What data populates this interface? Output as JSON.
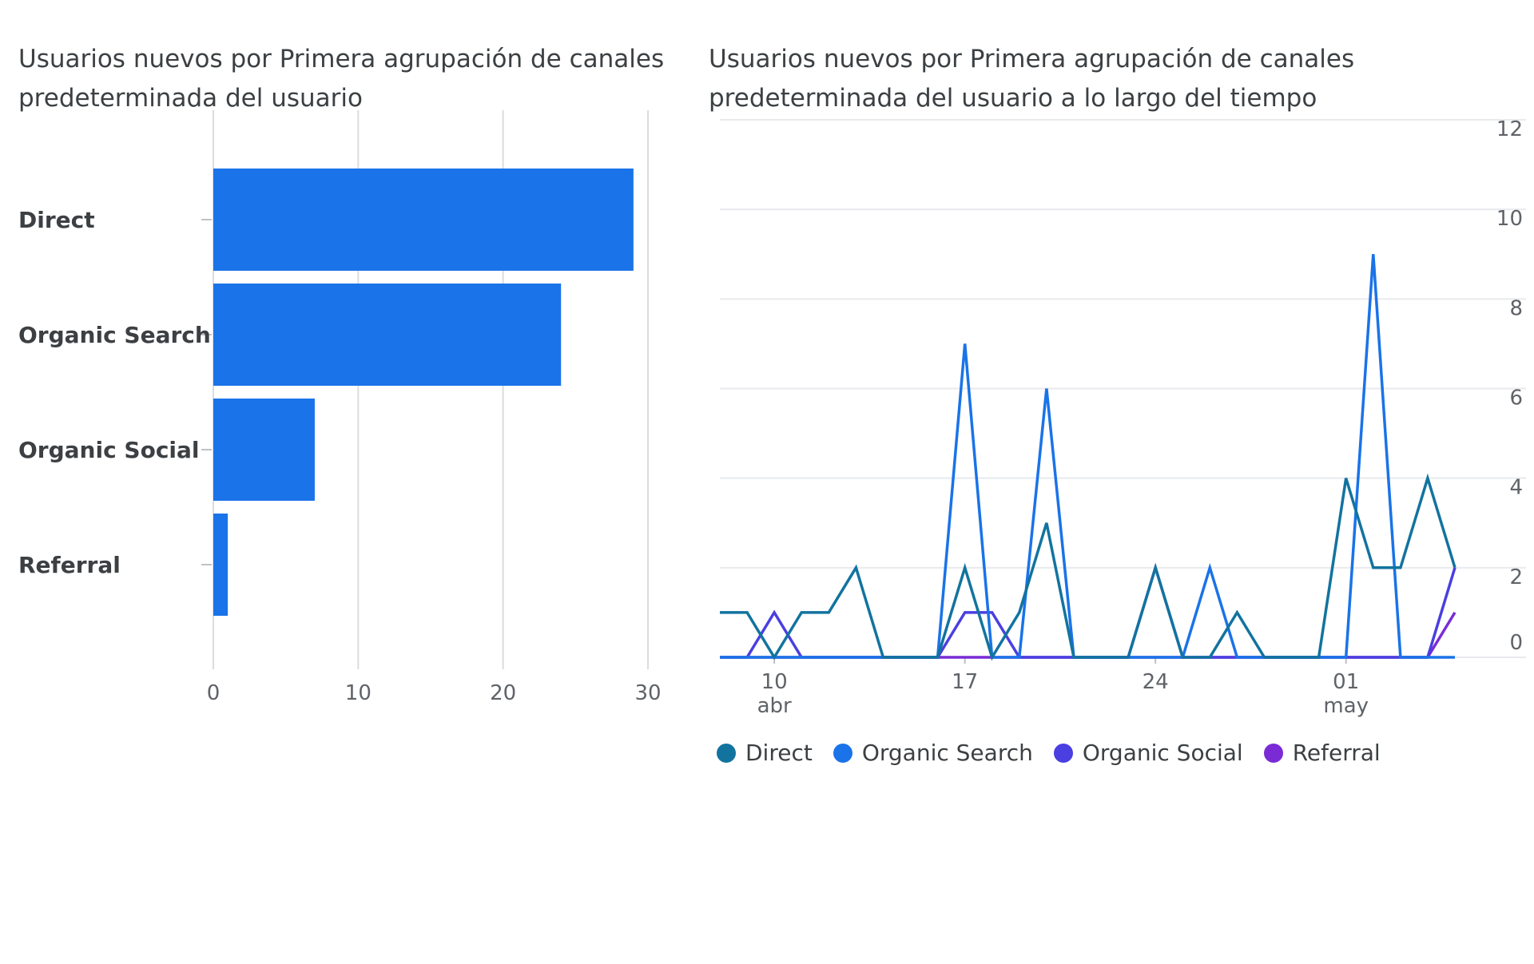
{
  "chart_data": [
    {
      "type": "bar",
      "orientation": "horizontal",
      "title": "Usuarios nuevos por Primera agrupación de canales predeterminada del usuario",
      "categories": [
        "Direct",
        "Organic Search",
        "Organic Social",
        "Referral"
      ],
      "values": [
        29,
        24,
        7,
        1
      ],
      "xlim": [
        0,
        30
      ],
      "xticks": [
        0,
        10,
        20,
        30
      ],
      "grid": "vertical",
      "color": "#1a73e8"
    },
    {
      "type": "line",
      "title": "Usuarios nuevos por Primera agrupación de canales predeterminada del usuario a lo largo del tiempo",
      "x": [
        "2024-04-08",
        "2024-04-09",
        "2024-04-10",
        "2024-04-11",
        "2024-04-12",
        "2024-04-13",
        "2024-04-14",
        "2024-04-15",
        "2024-04-16",
        "2024-04-17",
        "2024-04-18",
        "2024-04-19",
        "2024-04-20",
        "2024-04-21",
        "2024-04-22",
        "2024-04-23",
        "2024-04-24",
        "2024-04-25",
        "2024-04-26",
        "2024-04-27",
        "2024-04-28",
        "2024-04-29",
        "2024-04-30",
        "2024-05-01",
        "2024-05-02",
        "2024-05-03",
        "2024-05-04",
        "2024-05-05"
      ],
      "xticks": [
        {
          "day": "10",
          "month": "abr",
          "index": 2
        },
        {
          "day": "17",
          "month": "",
          "index": 9
        },
        {
          "day": "24",
          "month": "",
          "index": 16
        },
        {
          "day": "01",
          "month": "may",
          "index": 23
        }
      ],
      "ylim": [
        0,
        12
      ],
      "yticks": [
        0,
        2,
        4,
        6,
        8,
        10,
        12
      ],
      "grid": "horizontal",
      "legend_position": "bottom",
      "series": [
        {
          "name": "Direct",
          "color": "#12739f",
          "values": [
            1,
            1,
            0,
            1,
            1,
            2,
            0,
            0,
            0,
            2,
            0,
            1,
            3,
            0,
            0,
            0,
            2,
            0,
            0,
            1,
            0,
            0,
            0,
            4,
            2,
            2,
            4,
            2
          ]
        },
        {
          "name": "Organic Search",
          "color": "#1a73e8",
          "values": [
            0,
            0,
            0,
            0,
            0,
            0,
            0,
            0,
            0,
            7,
            0,
            0,
            6,
            0,
            0,
            0,
            0,
            0,
            2,
            0,
            0,
            0,
            0,
            0,
            9,
            0,
            0,
            0
          ]
        },
        {
          "name": "Organic Social",
          "color": "#4a3fe0",
          "values": [
            0,
            0,
            1,
            0,
            0,
            0,
            0,
            0,
            0,
            1,
            1,
            0,
            0,
            0,
            0,
            0,
            2,
            0,
            0,
            0,
            0,
            0,
            0,
            0,
            0,
            0,
            0,
            2
          ]
        },
        {
          "name": "Referral",
          "color": "#7a2bd6",
          "values": [
            0,
            0,
            0,
            0,
            0,
            0,
            0,
            0,
            0,
            0,
            0,
            0,
            0,
            0,
            0,
            0,
            0,
            0,
            0,
            0,
            0,
            0,
            0,
            0,
            0,
            0,
            0,
            1
          ]
        }
      ]
    }
  ]
}
